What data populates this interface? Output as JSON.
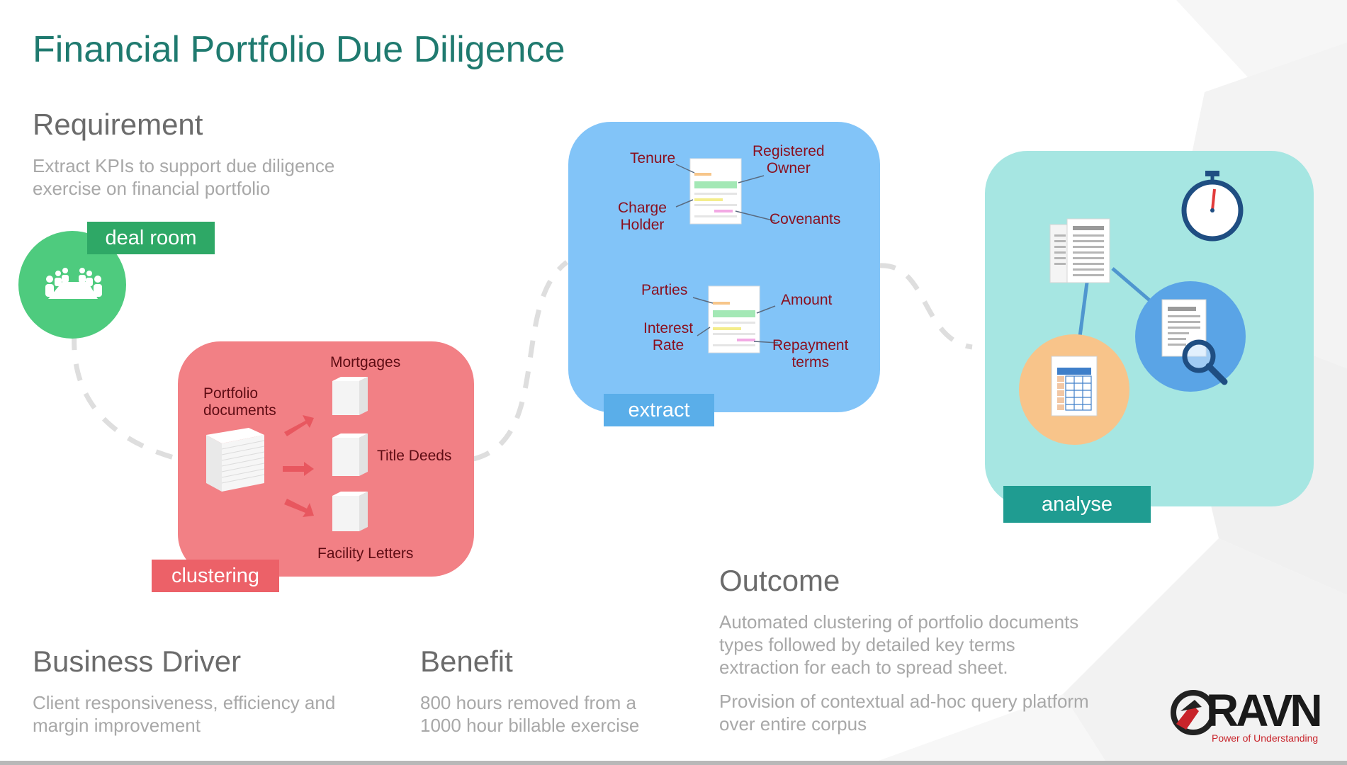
{
  "title": "Financial Portfolio Due Diligence",
  "requirement": {
    "heading": "Requirement",
    "line1": "Extract KPIs to support due diligence",
    "line2": "exercise on financial portfolio"
  },
  "deal_room": {
    "tag": "deal room"
  },
  "clustering": {
    "tag": "clustering",
    "source_line1": "Portfolio",
    "source_line2": "documents",
    "mortgages": "Mortgages",
    "title_deeds": "Title Deeds",
    "facility_letters": "Facility Letters"
  },
  "extract": {
    "tag": "extract",
    "tenure": "Tenure",
    "registered_line1": "Registered",
    "registered_line2": "Owner",
    "charge_line1": "Charge",
    "charge_line2": "Holder",
    "covenants": "Covenants",
    "parties": "Parties",
    "amount": "Amount",
    "interest_line1": "Interest",
    "interest_line2": "Rate",
    "repayment_line1": "Repayment",
    "repayment_line2": "terms"
  },
  "analyse": {
    "tag": "analyse"
  },
  "outcome": {
    "heading": "Outcome",
    "p1_line1": "Automated clustering of portfolio documents",
    "p1_line2": "types followed by detailed key terms",
    "p1_line3": "extraction for each to spread sheet.",
    "p2_line1": "Provision of contextual ad-hoc query platform",
    "p2_line2": "over entire corpus"
  },
  "business_driver": {
    "heading": "Business Driver",
    "line1": "Client responsiveness, efficiency and",
    "line2": "margin improvement"
  },
  "benefit": {
    "heading": "Benefit",
    "line1": "800 hours removed from a",
    "line2": "1000 hour billable exercise"
  },
  "logo": {
    "name": "RAVN",
    "tagline": "Power of Understanding"
  },
  "colors": {
    "title": "#1f7a6f",
    "deal_room": "#2ea866",
    "clustering": "#f28085",
    "extract": "#82c4f8",
    "analyse": "#a6e6e2",
    "analyse_tag": "#1f9c91"
  }
}
